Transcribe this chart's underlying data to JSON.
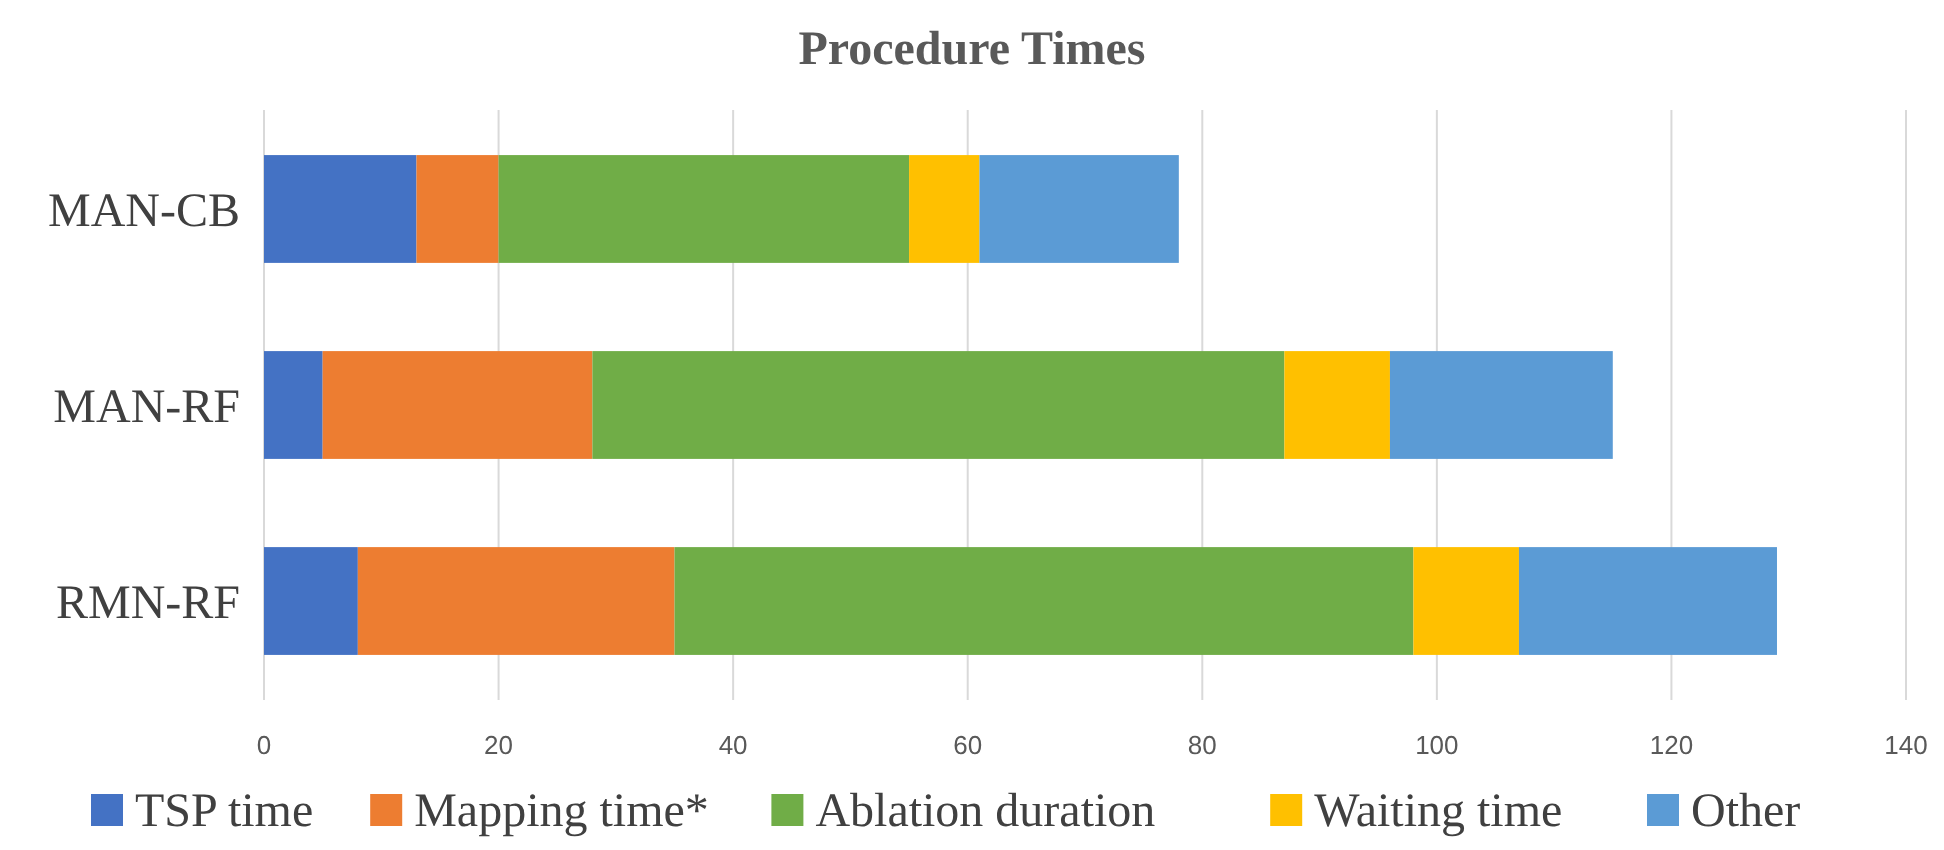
{
  "chart_data": {
    "type": "bar",
    "title": "Procedure Times",
    "orientation": "horizontal",
    "stacked": true,
    "categories": [
      "MAN-CB",
      "MAN-RF",
      "RMN-RF"
    ],
    "series": [
      {
        "name": "TSP time",
        "color": "#4472c4",
        "values": [
          13,
          5,
          8
        ]
      },
      {
        "name": "Mapping time*",
        "color": "#ed7d31",
        "values": [
          7,
          23,
          27
        ]
      },
      {
        "name": "Ablation duration",
        "color": "#70ad47",
        "values": [
          35,
          59,
          63
        ]
      },
      {
        "name": "Waiting time",
        "color": "#ffc000",
        "values": [
          6,
          9,
          9
        ]
      },
      {
        "name": "Other",
        "color": "#5b9bd5",
        "values": [
          17,
          19,
          22
        ]
      }
    ],
    "xlim": [
      0,
      140
    ],
    "xticks": [
      0,
      20,
      40,
      60,
      80,
      100,
      120,
      140
    ],
    "grid": "x",
    "legend": "bottom"
  }
}
